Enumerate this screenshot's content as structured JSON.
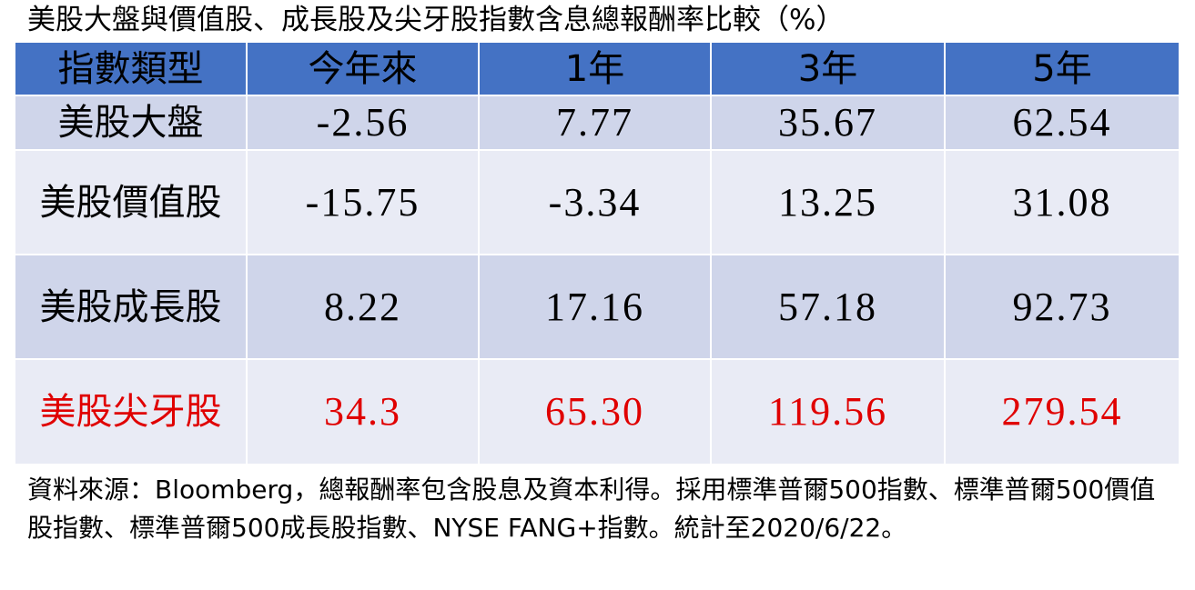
{
  "title": "美股大盤與價值股、成長股及尖牙股指數含息總報酬率比較（%）",
  "table": {
    "header": [
      "指數類型",
      "今年來",
      "1年",
      "3年",
      "5年"
    ],
    "rows": [
      [
        "美股大盤",
        "-2.56",
        "7.77",
        "35.67",
        "62.54"
      ],
      [
        "美股價值股",
        "-15.75",
        "-3.34",
        "13.25",
        "31.08"
      ],
      [
        "美股成長股",
        "8.22",
        "17.16",
        "57.18",
        "92.73"
      ],
      [
        "美股尖牙股",
        "34.3",
        "65.30",
        "119.56",
        "279.54"
      ]
    ]
  },
  "footnote": "資料來源：Bloomberg，總報酬率包含股息及資本利得。採用標準普爾500指數、標準普爾500價值股指數、標準普爾500成長股指數、NYSE FANG+指數。統計至2020/6/22。"
}
